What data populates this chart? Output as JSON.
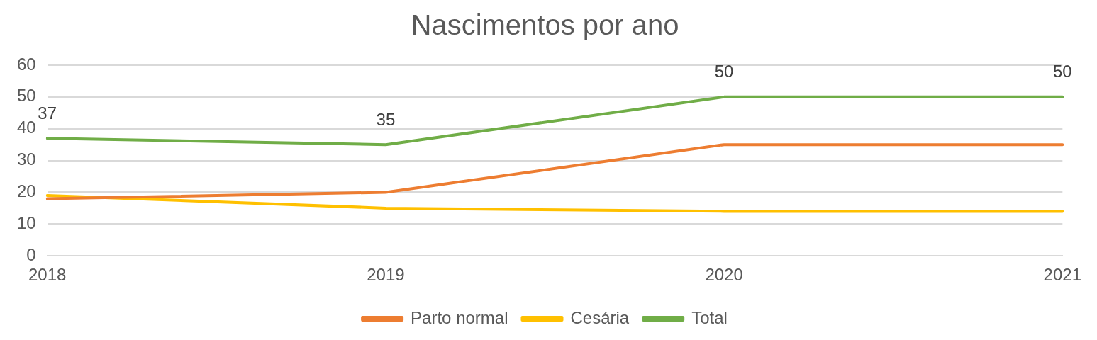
{
  "chart_data": {
    "type": "line",
    "title": "Nascimentos por ano",
    "categories": [
      "2018",
      "2019",
      "2020",
      "2021"
    ],
    "series": [
      {
        "name": "Parto normal",
        "color": "#ed7d31",
        "values": [
          18,
          20,
          35,
          35
        ]
      },
      {
        "name": "Cesária",
        "color": "#ffc000",
        "values": [
          19,
          15,
          14,
          14
        ]
      },
      {
        "name": "Total",
        "color": "#70ad47",
        "values": [
          37,
          35,
          50,
          50
        ],
        "value_labels": [
          "37",
          "35",
          "50",
          "50"
        ]
      }
    ],
    "ylim": [
      0,
      60
    ],
    "yticks": [
      0,
      10,
      20,
      30,
      40,
      50,
      60
    ],
    "grid": "y",
    "legend": "bottom",
    "marker": "none",
    "line_style": "solid"
  }
}
